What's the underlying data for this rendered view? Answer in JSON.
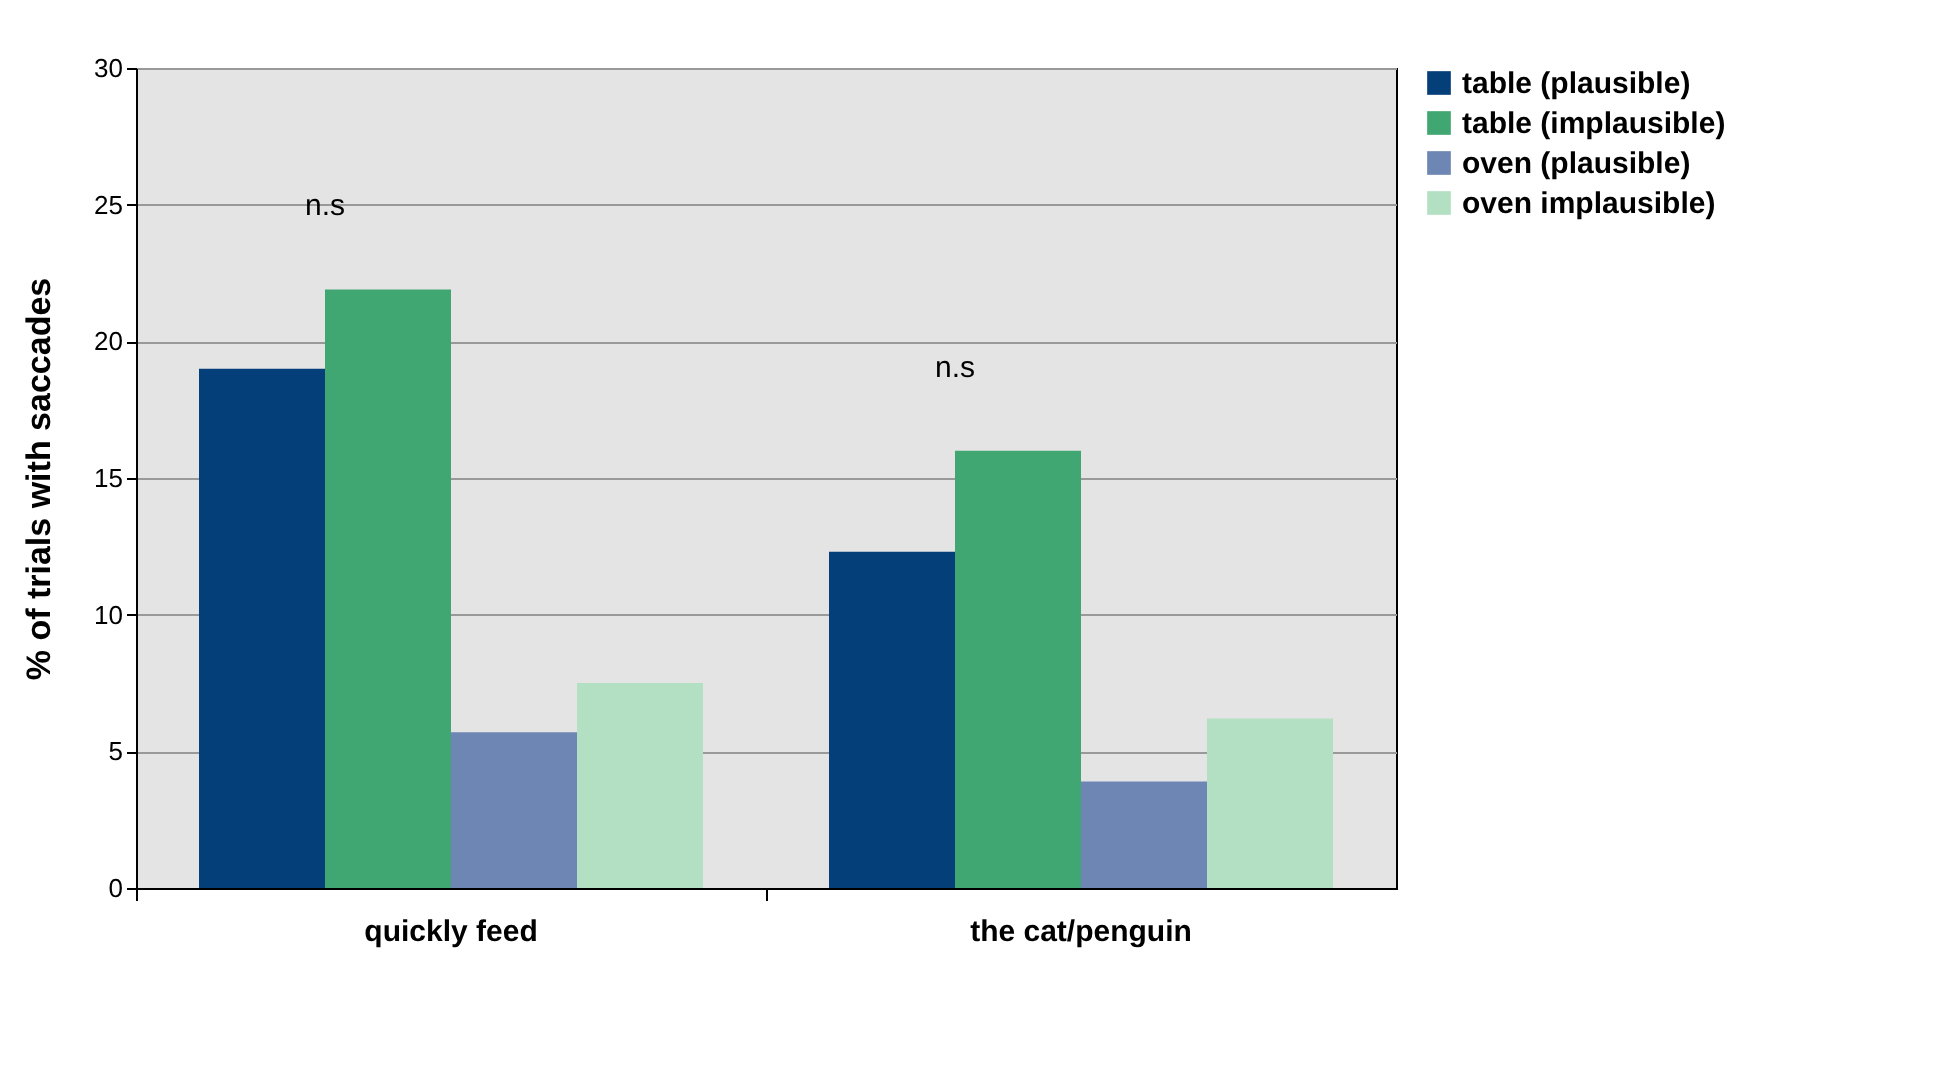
{
  "chart_data": {
    "type": "bar",
    "ylabel": "% of trials with saccades",
    "categories": [
      "quickly feed",
      "the cat/penguin"
    ],
    "series": [
      {
        "name": "table (plausible)",
        "color": "#053f7a",
        "values": [
          19.0,
          12.3
        ]
      },
      {
        "name": "table (implausible)",
        "color": "#40a672",
        "values": [
          21.9,
          16.0
        ]
      },
      {
        "name": "oven (plausible)",
        "color": "#6d86b3",
        "values": [
          5.7,
          3.9
        ]
      },
      {
        "name": "oven implausible)",
        "color": "#b3e0c2",
        "values": [
          7.5,
          6.2
        ]
      }
    ],
    "ylim": [
      0,
      30
    ],
    "yticks": [
      0,
      5,
      10,
      15,
      20,
      25,
      30
    ],
    "grid": "y",
    "legend": "right",
    "annotations": [
      "n.s",
      "n.s"
    ]
  }
}
